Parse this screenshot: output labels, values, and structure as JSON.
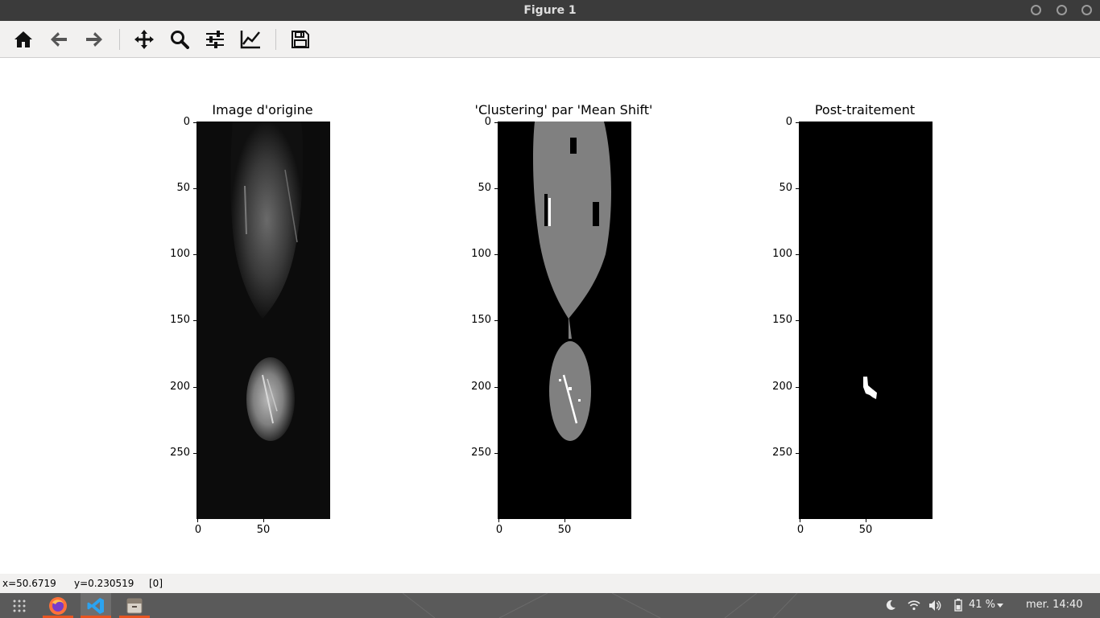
{
  "window": {
    "title": "Figure 1"
  },
  "toolbar": {
    "buttons": [
      {
        "name": "home-icon"
      },
      {
        "name": "back-arrow-icon"
      },
      {
        "name": "forward-arrow-icon"
      },
      {
        "name": "pan-icon"
      },
      {
        "name": "zoom-icon"
      },
      {
        "name": "configure-subplots-icon"
      },
      {
        "name": "edit-axis-icon"
      },
      {
        "name": "save-icon"
      }
    ]
  },
  "plots": [
    {
      "title": "Image d'origine",
      "yticks": [
        "0",
        "50",
        "100",
        "150",
        "200",
        "250"
      ],
      "xticks": [
        "0",
        "50"
      ]
    },
    {
      "title": "'Clustering' par 'Mean Shift'",
      "yticks": [
        "0",
        "50",
        "100",
        "150",
        "200",
        "250"
      ],
      "xticks": [
        "0",
        "50"
      ]
    },
    {
      "title": "Post-traitement",
      "yticks": [
        "0",
        "50",
        "100",
        "150",
        "200",
        "250"
      ],
      "xticks": [
        "0",
        "50"
      ]
    }
  ],
  "status": {
    "x": "x=50.6719",
    "y": "y=0.230519",
    "value": "[0]"
  },
  "taskbar": {
    "battery": "41 %",
    "clock": "mer. 14:40"
  },
  "colors": {
    "titlebar": "#3b3b3b",
    "toolbar": "#f2f1f0",
    "taskbar": "#5a5a5a",
    "accent": "#e95420"
  }
}
